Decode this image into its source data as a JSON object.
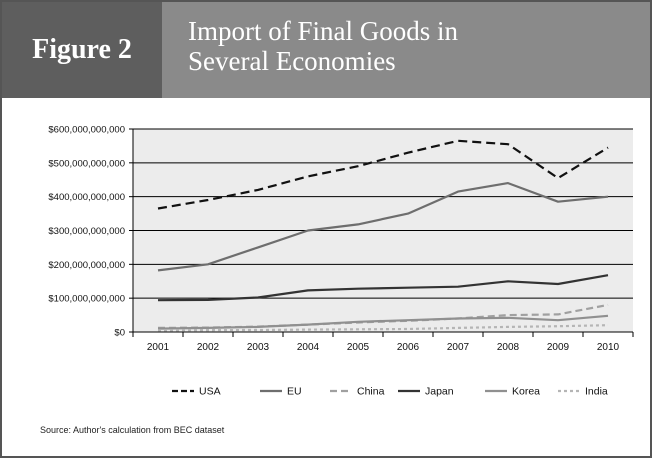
{
  "header": {
    "figure_label": "Figure 2",
    "title": "Import of Final Goods in\nSeveral Economies"
  },
  "source": "Source: Author's calculation from BEC dataset",
  "chart_data": {
    "type": "line",
    "title": "Import of Final Goods in Several Economies",
    "xlabel": "",
    "ylabel": "",
    "categories": [
      "2001",
      "2002",
      "2003",
      "2004",
      "2005",
      "2006",
      "2007",
      "2008",
      "2009",
      "2010"
    ],
    "ylim": [
      0,
      600000000000
    ],
    "yticks": [
      {
        "value": 0,
        "label": "$0"
      },
      {
        "value": 100000000000,
        "label": "$100,000,000,000"
      },
      {
        "value": 200000000000,
        "label": "$200,000,000,000"
      },
      {
        "value": 300000000000,
        "label": "$300,000,000,000"
      },
      {
        "value": 400000000000,
        "label": "$400,000,000,000"
      },
      {
        "value": 500000000000,
        "label": "$500,000,000,000"
      },
      {
        "value": 600000000000,
        "label": "$600,000,000,000"
      }
    ],
    "grid": true,
    "legend_position": "bottom",
    "series": [
      {
        "name": "USA",
        "color": "#111111",
        "dash": "long-dash",
        "values": [
          365000000000,
          390000000000,
          420000000000,
          460000000000,
          490000000000,
          530000000000,
          565000000000,
          555000000000,
          455000000000,
          545000000000
        ]
      },
      {
        "name": "EU",
        "color": "#6e6e6e",
        "dash": "solid",
        "values": [
          182000000000,
          200000000000,
          250000000000,
          300000000000,
          318000000000,
          350000000000,
          415000000000,
          440000000000,
          385000000000,
          400000000000
        ]
      },
      {
        "name": "China",
        "color": "#a0a0a0",
        "dash": "dash",
        "values": [
          12000000000,
          13000000000,
          16000000000,
          22000000000,
          28000000000,
          33000000000,
          40000000000,
          50000000000,
          52000000000,
          80000000000
        ]
      },
      {
        "name": "Japan",
        "color": "#333333",
        "dash": "solid",
        "values": [
          94000000000,
          95000000000,
          102000000000,
          123000000000,
          128000000000,
          131000000000,
          134000000000,
          150000000000,
          142000000000,
          168000000000
        ]
      },
      {
        "name": "Korea",
        "color": "#909090",
        "dash": "solid",
        "values": [
          10000000000,
          12000000000,
          15000000000,
          22000000000,
          30000000000,
          35000000000,
          40000000000,
          42000000000,
          35000000000,
          48000000000
        ]
      },
      {
        "name": "India",
        "color": "#b5b5b5",
        "dash": "dot",
        "values": [
          5000000000,
          5500000000,
          6000000000,
          7000000000,
          8000000000,
          9000000000,
          12000000000,
          15000000000,
          17000000000,
          20000000000
        ]
      }
    ]
  }
}
